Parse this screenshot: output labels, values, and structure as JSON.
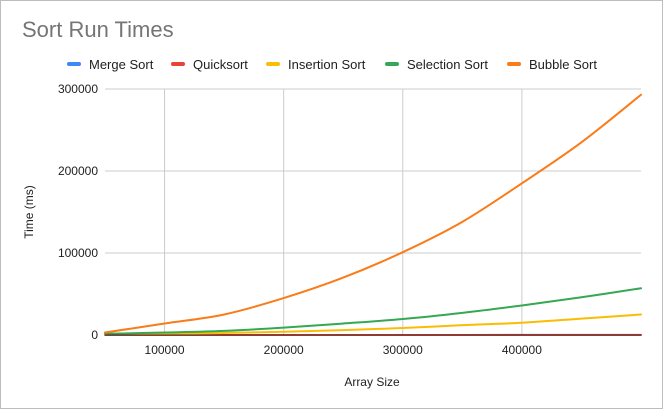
{
  "chart_data": {
    "type": "line",
    "title": "Sort Run Times",
    "xlabel": "Array Size",
    "ylabel": "Time (ms)",
    "xlim": [
      50000,
      500000
    ],
    "ylim": [
      0,
      300000
    ],
    "x_ticks": [
      100000,
      200000,
      300000,
      400000
    ],
    "y_ticks": [
      0,
      100000,
      200000,
      300000
    ],
    "grid": true,
    "legend_position": "top",
    "x": [
      50000,
      100000,
      150000,
      200000,
      250000,
      300000,
      350000,
      400000,
      450000,
      500000
    ],
    "series": [
      {
        "name": "Merge Sort",
        "color": "#4285f4",
        "values": [
          10,
          20,
          30,
          40,
          50,
          60,
          70,
          80,
          90,
          100
        ]
      },
      {
        "name": "Quicksort",
        "color": "#ea4335",
        "values": [
          5,
          10,
          15,
          20,
          25,
          30,
          35,
          40,
          45,
          50
        ]
      },
      {
        "name": "Insertion Sort",
        "color": "#fbbc04",
        "values": [
          600,
          1200,
          2500,
          4000,
          6000,
          8500,
          12000,
          15000,
          20000,
          25000
        ]
      },
      {
        "name": "Selection Sort",
        "color": "#34a853",
        "values": [
          1500,
          3000,
          5000,
          9000,
          14000,
          19500,
          27000,
          36000,
          46000,
          57000
        ]
      },
      {
        "name": "Bubble Sort",
        "color": "#fa7b17",
        "values": [
          3000,
          14000,
          25000,
          45000,
          70000,
          101000,
          138000,
          185000,
          235000,
          293000
        ]
      }
    ]
  },
  "colors": {
    "gridline": "#cccccc",
    "baseline": "#333333",
    "title": "#757575",
    "text": "#212121"
  }
}
